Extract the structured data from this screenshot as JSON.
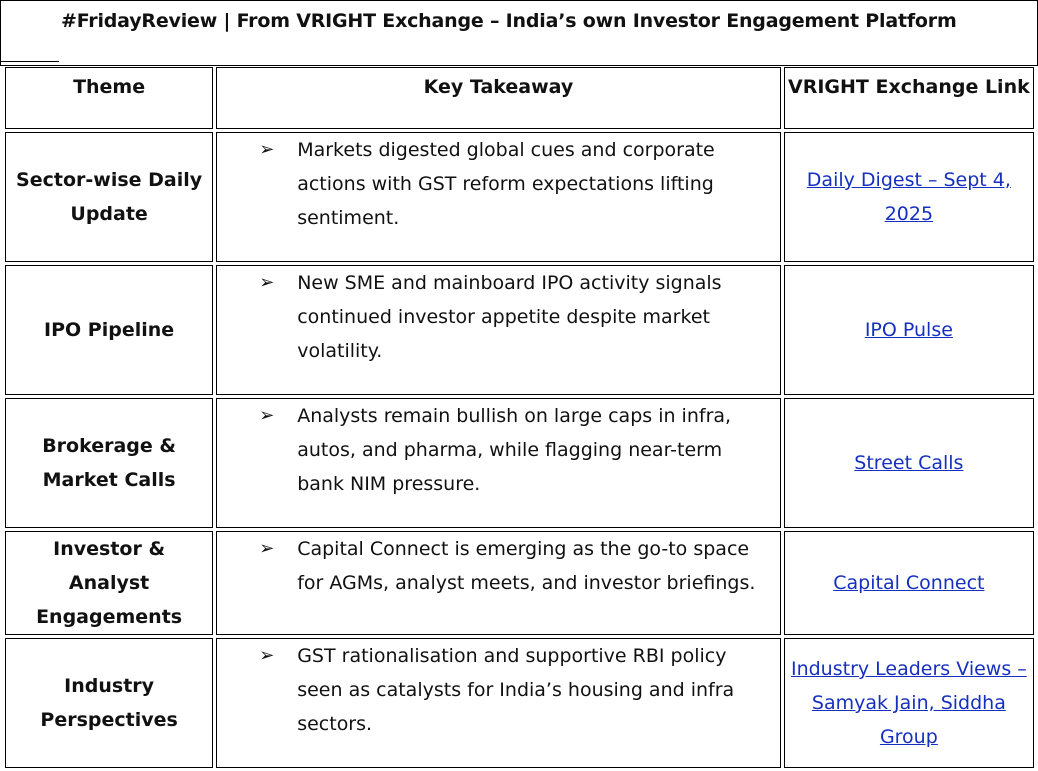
{
  "title": "#FridayReview  |  From VRIGHT Exchange – India’s own Investor Engagement Platform",
  "headers": [
    "Theme",
    "Key Takeaway",
    "VRIGHT Exchange Link"
  ],
  "rows": [
    {
      "theme": "Sector-wise Daily Update",
      "takeaway": "Markets digested global cues and corporate actions with GST reform expectations lifting sentiment.",
      "link": "Daily Digest – Sept 4, 2025"
    },
    {
      "theme": "IPO Pipeline",
      "takeaway": "New SME and mainboard IPO activity signals continued investor appetite despite market volatility.",
      "link": "IPO Pulse"
    },
    {
      "theme": "Brokerage & Market Calls",
      "takeaway": "Analysts remain bullish on large caps in infra, autos, and pharma, while flagging near-term bank NIM pressure.",
      "link": "Street Calls"
    },
    {
      "theme": "Investor & Analyst Engagements",
      "takeaway": "Capital Connect is emerging as the go-to space for AGMs, analyst meets, and investor briefings.",
      "link": "Capital Connect"
    },
    {
      "theme": "Industry Perspectives",
      "takeaway": "GST rationalisation and supportive RBI policy seen as catalysts for India’s housing and infra sectors.",
      "link": "Industry Leaders Views – Samyak Jain, Siddha Group"
    }
  ],
  "bullet_icon": "arrowhead-bullet",
  "link_color": "#1530c0"
}
